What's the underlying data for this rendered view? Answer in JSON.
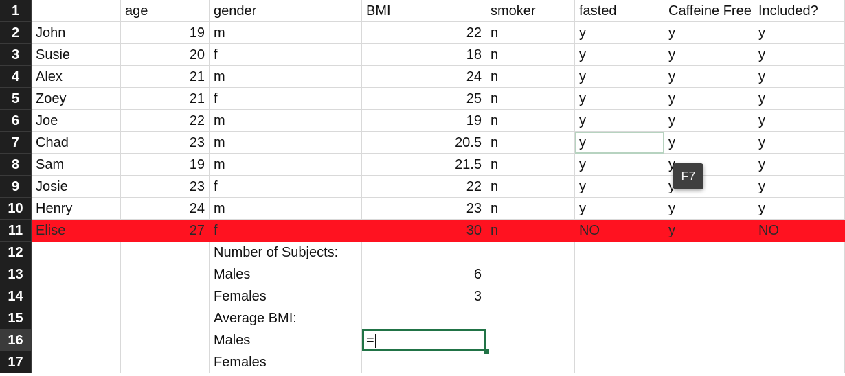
{
  "header": {
    "row_num": "1",
    "labels": [
      "",
      "age",
      "gender",
      "BMI",
      "smoker",
      "fasted",
      "Caffeine Free",
      "Included?"
    ]
  },
  "rows": [
    {
      "num": "2",
      "name": "John",
      "age": "19",
      "gender": "m",
      "bmi": "22",
      "smoker": "n",
      "fasted": "y",
      "caffeine": "y",
      "included": "y"
    },
    {
      "num": "3",
      "name": "Susie",
      "age": "20",
      "gender": "f",
      "bmi": "18",
      "smoker": "n",
      "fasted": "y",
      "caffeine": "y",
      "included": "y"
    },
    {
      "num": "4",
      "name": "Alex",
      "age": "21",
      "gender": "m",
      "bmi": "24",
      "smoker": "n",
      "fasted": "y",
      "caffeine": "y",
      "included": "y"
    },
    {
      "num": "5",
      "name": "Zoey",
      "age": "21",
      "gender": "f",
      "bmi": "25",
      "smoker": "n",
      "fasted": "y",
      "caffeine": "y",
      "included": "y"
    },
    {
      "num": "6",
      "name": "Joe",
      "age": "22",
      "gender": "m",
      "bmi": "19",
      "smoker": "n",
      "fasted": "y",
      "caffeine": "y",
      "included": "y"
    },
    {
      "num": "7",
      "name": "Chad",
      "age": "23",
      "gender": "m",
      "bmi": "20.5",
      "smoker": "n",
      "fasted": "y",
      "caffeine": "y",
      "included": "y"
    },
    {
      "num": "8",
      "name": "Sam",
      "age": "19",
      "gender": "m",
      "bmi": "21.5",
      "smoker": "n",
      "fasted": "y",
      "caffeine": "y",
      "included": "y"
    },
    {
      "num": "9",
      "name": "Josie",
      "age": "23",
      "gender": "f",
      "bmi": "22",
      "smoker": "n",
      "fasted": "y",
      "caffeine": "y",
      "included": "y"
    },
    {
      "num": "10",
      "name": "Henry",
      "age": "24",
      "gender": "m",
      "bmi": "23",
      "smoker": "n",
      "fasted": "y",
      "caffeine": "y",
      "included": "y"
    },
    {
      "num": "11",
      "name": "Elise",
      "age": "27",
      "gender": "f",
      "bmi": "30",
      "smoker": "n",
      "fasted": "NO",
      "caffeine": "y",
      "included": "NO"
    }
  ],
  "summary": [
    {
      "num": "12",
      "label": "Number of Subjects:",
      "value": ""
    },
    {
      "num": "13",
      "label": "Males",
      "value": "6"
    },
    {
      "num": "14",
      "label": "Females",
      "value": "3"
    },
    {
      "num": "15",
      "label": "Average BMI:",
      "value": ""
    },
    {
      "num": "16",
      "label": "Males",
      "value": "="
    },
    {
      "num": "17",
      "label": "Females",
      "value": ""
    }
  ],
  "tooltip": "F7",
  "colors": {
    "highlight_row": "#ff1220",
    "selection": "#217346"
  }
}
